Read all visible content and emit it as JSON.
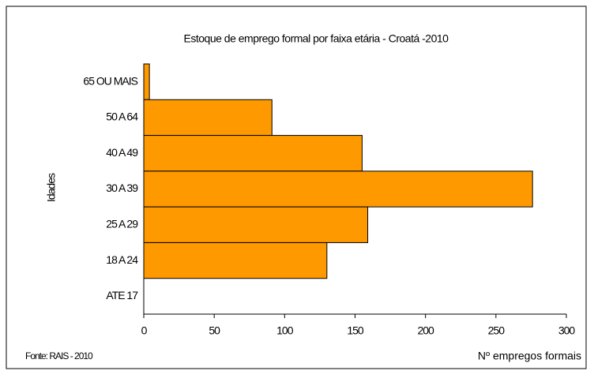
{
  "chart_data": {
    "type": "bar",
    "orientation": "horizontal",
    "title": "Estoque de emprego formal por faixa etária - Croatá -2010",
    "categories": [
      "65 OU MAIS",
      "50 A 64",
      "40 A 49",
      "30 A 39",
      "25 A 29",
      "18 A 24",
      "ATE 17"
    ],
    "values": [
      4,
      91,
      155,
      276,
      159,
      130,
      0
    ],
    "color": "#ff9900",
    "xlim": [
      0,
      300
    ],
    "xticks": [
      0,
      50,
      100,
      150,
      200,
      250,
      300
    ],
    "xlabel": "Nº empregos formais",
    "ylabel": "Idades",
    "source": "Fonte: RAIS - 2010"
  }
}
